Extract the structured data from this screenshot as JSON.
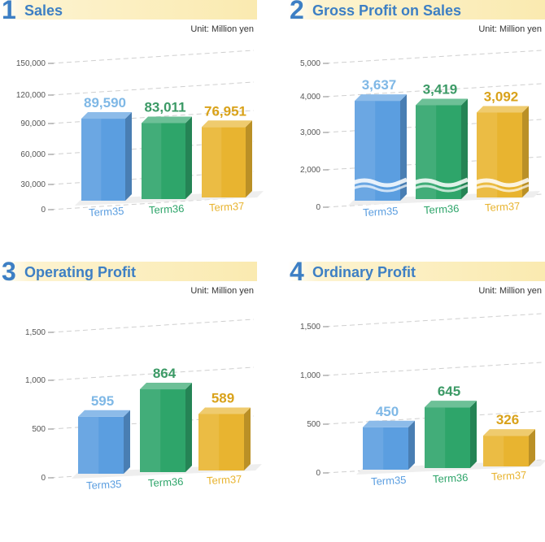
{
  "colors": {
    "term35": "#5b9ee0",
    "term36": "#2ea56a",
    "term37": "#e8b430",
    "title": "#3d7fc4"
  },
  "panels": [
    {
      "number": "1",
      "title": "Sales",
      "unit": "Unit: Million yen"
    },
    {
      "number": "2",
      "title": "Gross Profit on Sales",
      "unit": "Unit: Million yen"
    },
    {
      "number": "3",
      "title": "Operating Profit",
      "unit": "Unit: Million yen"
    },
    {
      "number": "4",
      "title": "Ordinary Profit",
      "unit": "Unit: Million yen"
    }
  ],
  "chart_data": [
    {
      "type": "bar",
      "title": "Sales",
      "categories": [
        "Term35",
        "Term36",
        "Term37"
      ],
      "values": [
        89590,
        83011,
        76951
      ],
      "value_labels": [
        "89,590",
        "83,011",
        "76,951"
      ],
      "yticks": [
        "0",
        "30,000",
        "60,000",
        "90,000",
        "120,000",
        "150,000"
      ],
      "ylim": [
        0,
        150000
      ],
      "grid": true
    },
    {
      "type": "bar",
      "title": "Gross Profit on Sales",
      "categories": [
        "Term35",
        "Term36",
        "Term37"
      ],
      "values": [
        3637,
        3419,
        3092
      ],
      "value_labels": [
        "3,637",
        "3,419",
        "3,092"
      ],
      "yticks": [
        "0",
        "2,000",
        "3,000",
        "4,000",
        "5,000"
      ],
      "ylim": [
        0,
        5000
      ],
      "axis_break": true,
      "grid": true
    },
    {
      "type": "bar",
      "title": "Operating Profit",
      "categories": [
        "Term35",
        "Term36",
        "Term37"
      ],
      "values": [
        595,
        864,
        589
      ],
      "value_labels": [
        "595",
        "864",
        "589"
      ],
      "yticks": [
        "0",
        "500",
        "1,000",
        "1,500"
      ],
      "ylim": [
        0,
        1500
      ],
      "grid": true
    },
    {
      "type": "bar",
      "title": "Ordinary Profit",
      "categories": [
        "Term35",
        "Term36",
        "Term37"
      ],
      "values": [
        450,
        645,
        326
      ],
      "value_labels": [
        "450",
        "645",
        "326"
      ],
      "yticks": [
        "0",
        "500",
        "1,000",
        "1,500"
      ],
      "ylim": [
        0,
        1500
      ],
      "grid": true
    }
  ]
}
